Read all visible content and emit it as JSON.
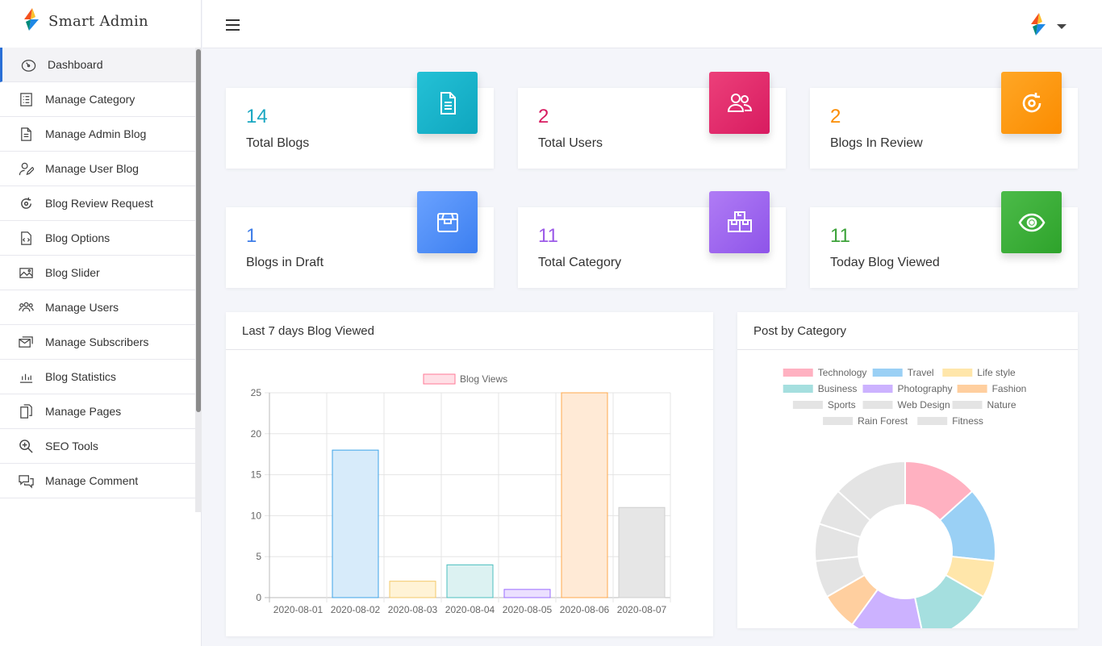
{
  "app": {
    "name": "Smart Admin"
  },
  "sidebar": {
    "items": [
      {
        "label": "Dashboard",
        "icon": "gauge-icon"
      },
      {
        "label": "Manage Category",
        "icon": "list-icon"
      },
      {
        "label": "Manage Admin Blog",
        "icon": "document-icon"
      },
      {
        "label": "Manage User Blog",
        "icon": "user-edit-icon"
      },
      {
        "label": "Blog Review Request",
        "icon": "review-icon"
      },
      {
        "label": "Blog Options",
        "icon": "code-file-icon"
      },
      {
        "label": "Blog Slider",
        "icon": "image-icon"
      },
      {
        "label": "Manage Users",
        "icon": "users-icon"
      },
      {
        "label": "Manage Subscribers",
        "icon": "subscribers-icon"
      },
      {
        "label": "Blog Statistics",
        "icon": "bar-chart-icon"
      },
      {
        "label": "Manage Pages",
        "icon": "pages-icon"
      },
      {
        "label": "SEO Tools",
        "icon": "search-plus-icon"
      },
      {
        "label": "Manage Comment",
        "icon": "comments-icon"
      }
    ]
  },
  "stats": [
    {
      "value": "14",
      "label": "Total Blogs",
      "color": "#1aa7c2",
      "badge_from": "#24c1d6",
      "badge_to": "#0fa6bf",
      "icon": "document-icon"
    },
    {
      "value": "2",
      "label": "Total Users",
      "color": "#d81b60",
      "badge_from": "#ec407a",
      "badge_to": "#d81b60",
      "icon": "users-icon"
    },
    {
      "value": "2",
      "label": "Blogs In Review",
      "color": "#fb8c00",
      "badge_from": "#ffa726",
      "badge_to": "#fb8c00",
      "icon": "review-icon"
    },
    {
      "value": "1",
      "label": "Blogs in Draft",
      "color": "#3f7ee8",
      "badge_from": "#6aa2ff",
      "badge_to": "#3c7ff0",
      "icon": "box-icon"
    },
    {
      "value": "11",
      "label": "Total Category",
      "color": "#9c5be8",
      "badge_from": "#b07cf5",
      "badge_to": "#8e54e9",
      "icon": "boxes-icon"
    },
    {
      "value": "11",
      "label": "Today Blog Viewed",
      "color": "#3da33a",
      "badge_from": "#4cbb49",
      "badge_to": "#2ea32b",
      "icon": "eye-icon"
    }
  ],
  "bar_panel": {
    "title": "Last 7 days Blog Viewed"
  },
  "pie_panel": {
    "title": "Post by Category"
  },
  "chart_data": [
    {
      "type": "bar",
      "title": "",
      "categories": [
        "2020-08-01",
        "2020-08-02",
        "2020-08-03",
        "2020-08-04",
        "2020-08-05",
        "2020-08-06",
        "2020-08-07"
      ],
      "series": [
        {
          "name": "Blog Views",
          "values": [
            0,
            18,
            2,
            4,
            1,
            25,
            11
          ]
        }
      ],
      "ylim": [
        0,
        25
      ],
      "yticks": [
        0,
        5,
        10,
        15,
        20,
        25
      ],
      "grid": true,
      "legend": "top",
      "fill_colors": [
        "#ffdfe6",
        "#d7ebfa",
        "#fff3d6",
        "#dcf2f2",
        "#ebe0ff",
        "#ffead6",
        "#e6e6e6"
      ],
      "stroke_colors": [
        "#ff7a96",
        "#3ca3e8",
        "#f3c86a",
        "#4bbfbf",
        "#9a6bff",
        "#ffa94d",
        "#cfcfcf"
      ],
      "legend_fill": "#ffdfe6",
      "legend_stroke": "#ff7a96"
    },
    {
      "type": "pie",
      "variant": "doughnut",
      "title": "",
      "labels": [
        "Technology",
        "Travel",
        "Life style",
        "Business",
        "Photography",
        "Fashion",
        "Sports",
        "Web Design",
        "Nature",
        "Rain Forest",
        "Fitness"
      ],
      "values": [
        2,
        2,
        1,
        2,
        2,
        1,
        1,
        1,
        1,
        0,
        2
      ],
      "colors": [
        "#ffb1c1",
        "#9ad0f5",
        "#ffe6aa",
        "#a5dfdf",
        "#ccb2ff",
        "#ffcf9f",
        "#e4e4e4",
        "#e4e4e4",
        "#e4e4e4",
        "#e4e4e4",
        "#e4e4e4"
      ],
      "legend": "top"
    }
  ]
}
